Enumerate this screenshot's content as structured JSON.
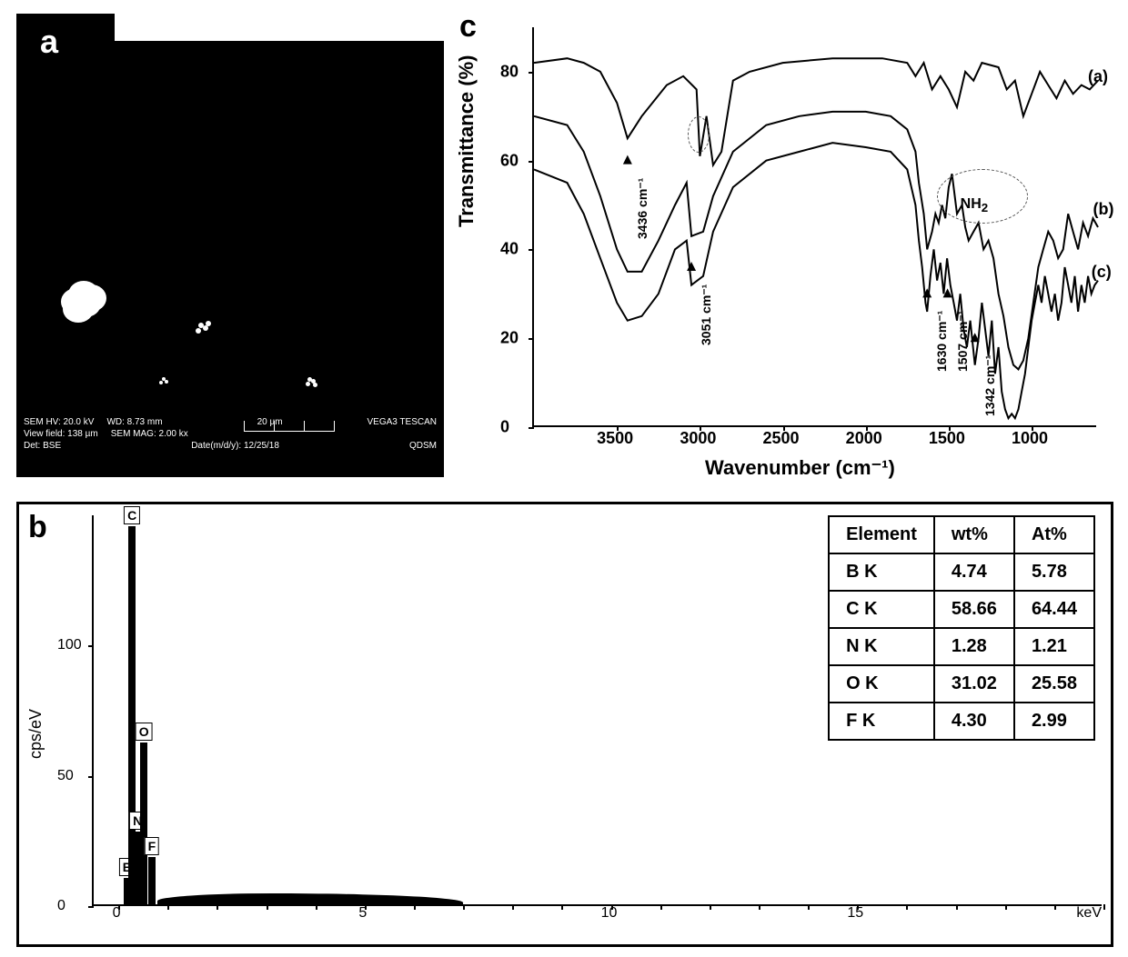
{
  "panelA": {
    "label": "a",
    "sem_footer": {
      "hv": "SEM HV: 20.0 kV",
      "wd": "WD: 8.73 mm",
      "viewfield": "View field: 138 µm",
      "mag": "SEM MAG: 2.00 kx",
      "scalebar": "20 µm",
      "det": "Det: BSE",
      "date": "Date(m/d/y): 12/25/18",
      "instrument": "VEGA3 TESCAN",
      "lab": "QDSM"
    },
    "background": "#000000"
  },
  "panelC": {
    "label": "c",
    "ylabel": "Transmittance (%)",
    "xlabel": "Wavenumber (cm⁻¹)",
    "yticks": [
      0,
      20,
      40,
      60,
      80
    ],
    "xticks": [
      3500,
      3000,
      2500,
      2000,
      1500,
      1000
    ],
    "ylim": [
      0,
      90
    ],
    "xlim": [
      4000,
      600
    ],
    "series_labels": [
      "(a)",
      "(b)",
      "(c)"
    ],
    "nh2_label": "NH₂",
    "peak_annotations": [
      {
        "text": "3436 cm⁻¹",
        "wn": 3436,
        "t": 60
      },
      {
        "text": "3051 cm⁻¹",
        "wn": 3051,
        "t": 36
      },
      {
        "text": "1630 cm⁻¹",
        "wn": 1630,
        "t": 30
      },
      {
        "text": "1507 cm⁻¹",
        "wn": 1507,
        "t": 30
      },
      {
        "text": "1342 cm⁻¹",
        "wn": 1342,
        "t": 20
      }
    ],
    "line_color": "#000000",
    "line_width": 2,
    "series": {
      "a": [
        [
          4000,
          82
        ],
        [
          3800,
          83
        ],
        [
          3700,
          82
        ],
        [
          3600,
          80
        ],
        [
          3500,
          73
        ],
        [
          3436,
          65
        ],
        [
          3350,
          70
        ],
        [
          3200,
          77
        ],
        [
          3100,
          79
        ],
        [
          3020,
          76
        ],
        [
          3000,
          61
        ],
        [
          2960,
          70
        ],
        [
          2920,
          59
        ],
        [
          2870,
          62
        ],
        [
          2800,
          78
        ],
        [
          2700,
          80
        ],
        [
          2500,
          82
        ],
        [
          2200,
          83
        ],
        [
          1900,
          83
        ],
        [
          1750,
          82
        ],
        [
          1700,
          79
        ],
        [
          1650,
          82
        ],
        [
          1600,
          76
        ],
        [
          1550,
          79
        ],
        [
          1500,
          76
        ],
        [
          1450,
          72
        ],
        [
          1400,
          80
        ],
        [
          1350,
          78
        ],
        [
          1300,
          82
        ],
        [
          1200,
          81
        ],
        [
          1150,
          76
        ],
        [
          1100,
          78
        ],
        [
          1050,
          70
        ],
        [
          1000,
          75
        ],
        [
          950,
          80
        ],
        [
          900,
          77
        ],
        [
          850,
          74
        ],
        [
          800,
          78
        ],
        [
          750,
          75
        ],
        [
          700,
          77
        ],
        [
          650,
          76
        ],
        [
          600,
          78
        ]
      ],
      "b": [
        [
          4000,
          70
        ],
        [
          3800,
          68
        ],
        [
          3700,
          62
        ],
        [
          3600,
          52
        ],
        [
          3500,
          40
        ],
        [
          3436,
          35
        ],
        [
          3350,
          35
        ],
        [
          3250,
          42
        ],
        [
          3150,
          50
        ],
        [
          3080,
          55
        ],
        [
          3051,
          43
        ],
        [
          2980,
          44
        ],
        [
          2920,
          52
        ],
        [
          2800,
          62
        ],
        [
          2600,
          68
        ],
        [
          2400,
          70
        ],
        [
          2200,
          71
        ],
        [
          2000,
          71
        ],
        [
          1850,
          70
        ],
        [
          1750,
          67
        ],
        [
          1700,
          62
        ],
        [
          1680,
          55
        ],
        [
          1650,
          48
        ],
        [
          1630,
          40
        ],
        [
          1600,
          44
        ],
        [
          1580,
          48
        ],
        [
          1560,
          46
        ],
        [
          1540,
          50
        ],
        [
          1520,
          47
        ],
        [
          1500,
          54
        ],
        [
          1480,
          57
        ],
        [
          1450,
          48
        ],
        [
          1420,
          50
        ],
        [
          1400,
          45
        ],
        [
          1380,
          42
        ],
        [
          1350,
          44
        ],
        [
          1320,
          46
        ],
        [
          1290,
          40
        ],
        [
          1260,
          42
        ],
        [
          1230,
          38
        ],
        [
          1200,
          30
        ],
        [
          1170,
          25
        ],
        [
          1140,
          18
        ],
        [
          1110,
          14
        ],
        [
          1080,
          13
        ],
        [
          1050,
          15
        ],
        [
          1020,
          20
        ],
        [
          990,
          28
        ],
        [
          960,
          36
        ],
        [
          930,
          40
        ],
        [
          900,
          44
        ],
        [
          870,
          42
        ],
        [
          840,
          38
        ],
        [
          810,
          40
        ],
        [
          780,
          48
        ],
        [
          750,
          44
        ],
        [
          720,
          40
        ],
        [
          690,
          46
        ],
        [
          660,
          43
        ],
        [
          630,
          47
        ],
        [
          600,
          45
        ]
      ],
      "c": [
        [
          4000,
          58
        ],
        [
          3800,
          55
        ],
        [
          3700,
          48
        ],
        [
          3600,
          38
        ],
        [
          3500,
          28
        ],
        [
          3436,
          24
        ],
        [
          3350,
          25
        ],
        [
          3250,
          30
        ],
        [
          3150,
          40
        ],
        [
          3080,
          42
        ],
        [
          3051,
          32
        ],
        [
          2980,
          34
        ],
        [
          2920,
          44
        ],
        [
          2800,
          54
        ],
        [
          2600,
          60
        ],
        [
          2400,
          62
        ],
        [
          2200,
          64
        ],
        [
          2000,
          63
        ],
        [
          1850,
          62
        ],
        [
          1750,
          58
        ],
        [
          1700,
          50
        ],
        [
          1680,
          42
        ],
        [
          1660,
          36
        ],
        [
          1640,
          28
        ],
        [
          1630,
          26
        ],
        [
          1610,
          34
        ],
        [
          1590,
          40
        ],
        [
          1570,
          33
        ],
        [
          1550,
          37
        ],
        [
          1530,
          30
        ],
        [
          1510,
          38
        ],
        [
          1490,
          32
        ],
        [
          1470,
          28
        ],
        [
          1450,
          24
        ],
        [
          1430,
          30
        ],
        [
          1410,
          22
        ],
        [
          1390,
          18
        ],
        [
          1370,
          24
        ],
        [
          1342,
          14
        ],
        [
          1320,
          20
        ],
        [
          1300,
          28
        ],
        [
          1280,
          22
        ],
        [
          1260,
          16
        ],
        [
          1240,
          24
        ],
        [
          1220,
          12
        ],
        [
          1200,
          18
        ],
        [
          1180,
          8
        ],
        [
          1160,
          4
        ],
        [
          1140,
          2
        ],
        [
          1120,
          3
        ],
        [
          1100,
          2
        ],
        [
          1080,
          4
        ],
        [
          1060,
          8
        ],
        [
          1040,
          12
        ],
        [
          1020,
          18
        ],
        [
          1000,
          24
        ],
        [
          980,
          28
        ],
        [
          960,
          32
        ],
        [
          940,
          28
        ],
        [
          920,
          34
        ],
        [
          900,
          30
        ],
        [
          880,
          26
        ],
        [
          860,
          30
        ],
        [
          840,
          24
        ],
        [
          820,
          28
        ],
        [
          800,
          36
        ],
        [
          780,
          32
        ],
        [
          760,
          28
        ],
        [
          740,
          34
        ],
        [
          720,
          26
        ],
        [
          700,
          32
        ],
        [
          680,
          28
        ],
        [
          660,
          34
        ],
        [
          640,
          30
        ],
        [
          620,
          32
        ],
        [
          600,
          33
        ]
      ]
    }
  },
  "panelB": {
    "label": "b",
    "ylabel": "cps/eV",
    "xunit": "keV",
    "yticks": [
      0,
      50,
      100
    ],
    "xticks": [
      0,
      5,
      10,
      15
    ],
    "ylim": [
      0,
      150
    ],
    "xlim": [
      -0.5,
      20
    ],
    "peaks": [
      {
        "el": "B",
        "kev": 0.18,
        "h": 10
      },
      {
        "el": "C",
        "kev": 0.28,
        "h": 145
      },
      {
        "el": "N",
        "kev": 0.39,
        "h": 28
      },
      {
        "el": "O",
        "kev": 0.52,
        "h": 62
      },
      {
        "el": "F",
        "kev": 0.68,
        "h": 18
      }
    ],
    "peak_fill": "#000000",
    "table": {
      "headers": [
        "Element",
        "wt%",
        "At%"
      ],
      "rows": [
        [
          "B  K",
          "4.74",
          "5.78"
        ],
        [
          "C  K",
          "58.66",
          "64.44"
        ],
        [
          "N  K",
          "1.28",
          "1.21"
        ],
        [
          "O  K",
          "31.02",
          "25.58"
        ],
        [
          "F  K",
          "4.30",
          "2.99"
        ]
      ]
    }
  }
}
